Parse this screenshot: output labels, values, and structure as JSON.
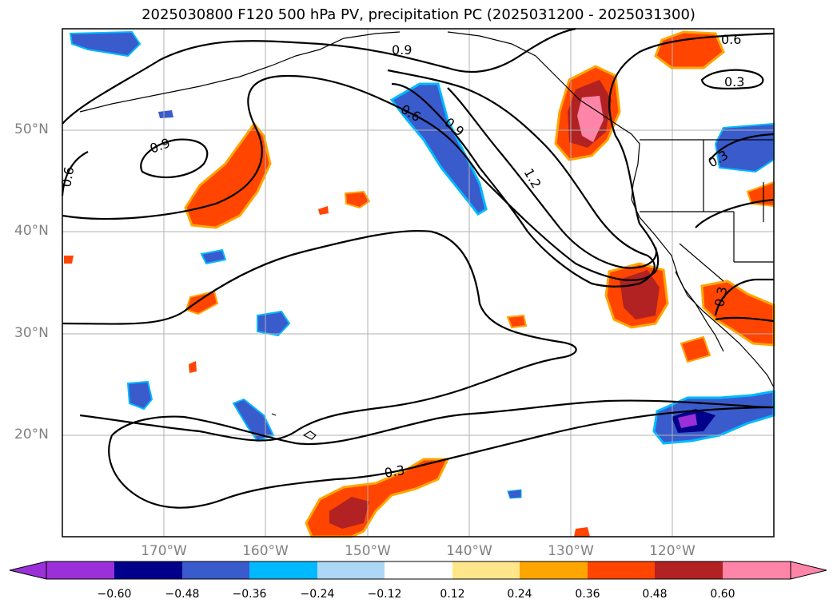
{
  "title": "2025030800 F120 500 hPa PV, precipitation PC (2025031200 - 2025031300)",
  "map": {
    "lat_labels": [
      "50°N",
      "40°N",
      "30°N",
      "20°N"
    ],
    "lon_labels": [
      "170°W",
      "160°W",
      "150°W",
      "140°W",
      "130°W",
      "120°W"
    ],
    "contour_labels": [
      "0.9",
      "0.6",
      "0.3",
      "0.9",
      "0.6",
      "0.6",
      "0.9",
      "1.2",
      "0.3",
      "0.3",
      "0.3"
    ],
    "grid": true,
    "colors": {
      "land_outline": "#000000",
      "grid": "#b0b0b0",
      "contour": "#000000"
    }
  },
  "colorbar": {
    "ticks": [
      "−0.60",
      "−0.48",
      "−0.36",
      "−0.24",
      "−0.12",
      "0.12",
      "0.24",
      "0.36",
      "0.48",
      "0.60"
    ],
    "colors": [
      "#9b30d9",
      "#00008b",
      "#3a5bcc",
      "#00b9ff",
      "#add8f5",
      "#ffffff",
      "#ffe68a",
      "#ffa500",
      "#ff4500",
      "#b22222",
      "#ff85a8"
    ],
    "extend": "both"
  }
}
